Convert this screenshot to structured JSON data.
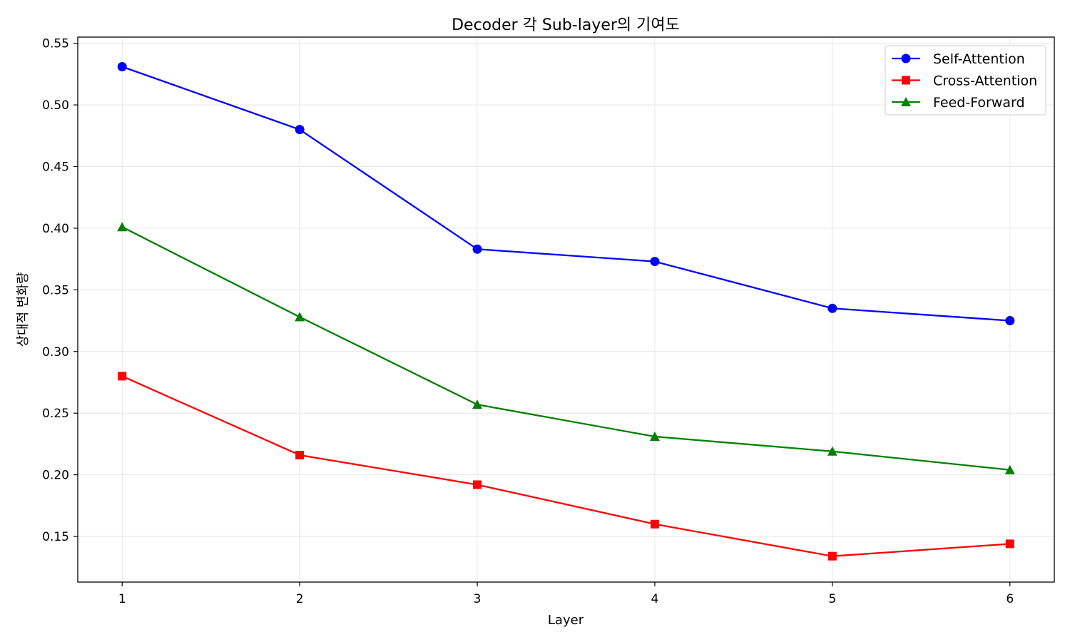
{
  "chart_data": {
    "type": "line",
    "title": "Decoder 각 Sub-layer의 기여도",
    "xlabel": "Layer",
    "ylabel": "상대적 변화량",
    "x": [
      1,
      2,
      3,
      4,
      5,
      6
    ],
    "x_tick_labels": [
      "1",
      "2",
      "3",
      "4",
      "5",
      "6"
    ],
    "y_ticks": [
      0.15,
      0.2,
      0.25,
      0.3,
      0.35,
      0.4,
      0.45,
      0.5,
      0.55
    ],
    "y_tick_labels": [
      "0.15",
      "0.20",
      "0.25",
      "0.30",
      "0.35",
      "0.40",
      "0.45",
      "0.50",
      "0.55"
    ],
    "xlim": [
      0.75,
      6.25
    ],
    "ylim": [
      0.113,
      0.555
    ],
    "grid": true,
    "legend_position": "top-right",
    "series": [
      {
        "name": "Self-Attention",
        "color": "#0000ff",
        "marker": "circle",
        "values": [
          0.531,
          0.48,
          0.383,
          0.373,
          0.335,
          0.325
        ]
      },
      {
        "name": "Cross-Attention",
        "color": "#ff0000",
        "marker": "square",
        "values": [
          0.28,
          0.216,
          0.192,
          0.16,
          0.134,
          0.144
        ]
      },
      {
        "name": "Feed-Forward",
        "color": "#008000",
        "marker": "triangle",
        "values": [
          0.401,
          0.328,
          0.257,
          0.231,
          0.219,
          0.204
        ]
      }
    ]
  }
}
